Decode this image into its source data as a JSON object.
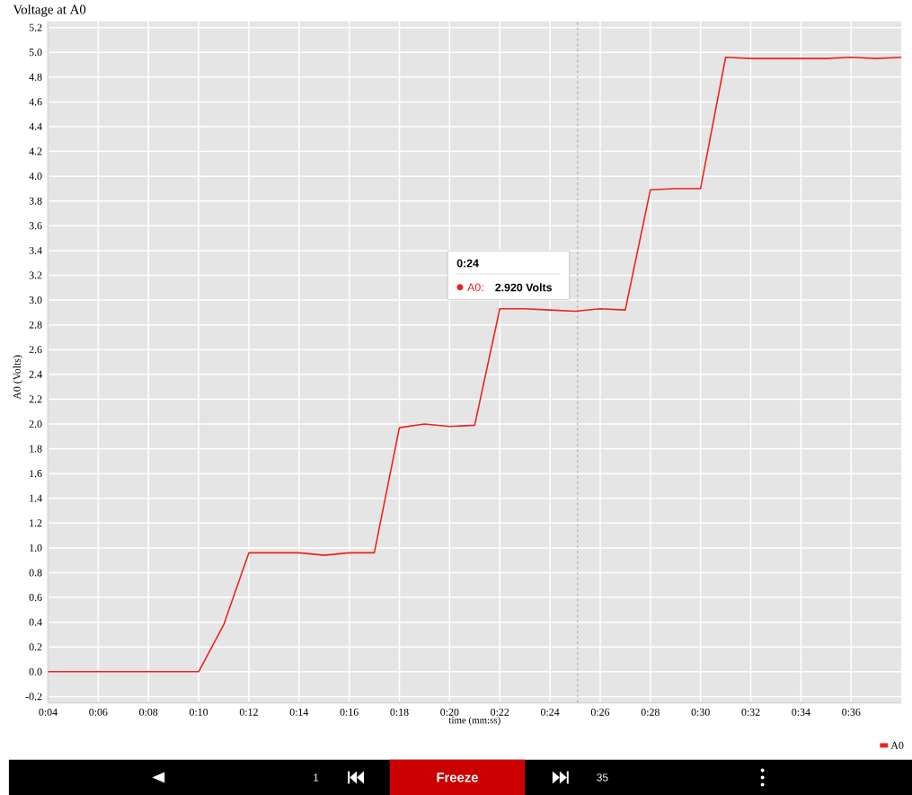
{
  "chart_data": {
    "type": "line",
    "title": "Voltage at A0",
    "xlabel": "time (mm:ss)",
    "ylabel": "A0 (Volts)",
    "x": [
      4,
      5,
      6,
      7,
      8,
      9,
      10,
      11,
      12,
      13,
      14,
      15,
      16,
      17,
      18,
      19,
      20,
      21,
      22,
      23,
      24,
      25,
      26,
      27,
      28,
      29,
      30,
      31,
      32,
      33,
      34,
      35,
      36,
      37,
      38
    ],
    "series": [
      {
        "name": "A0",
        "color": "#ee2222",
        "values": [
          0,
          0,
          0,
          0,
          0,
          0,
          0,
          0.38,
          0.96,
          0.96,
          0.96,
          0.94,
          0.96,
          0.96,
          1.97,
          2.0,
          1.98,
          1.99,
          2.93,
          2.93,
          2.92,
          2.91,
          2.93,
          2.92,
          3.89,
          3.9,
          3.9,
          4.96,
          4.95,
          4.95,
          4.95,
          4.95,
          4.96,
          4.95,
          4.96
        ]
      }
    ],
    "xlim": [
      4,
      38
    ],
    "xticks": [
      {
        "value": 4,
        "label": "0:04"
      },
      {
        "value": 6,
        "label": "0:06"
      },
      {
        "value": 8,
        "label": "0:08"
      },
      {
        "value": 10,
        "label": "0:10"
      },
      {
        "value": 12,
        "label": "0:12"
      },
      {
        "value": 14,
        "label": "0:14"
      },
      {
        "value": 16,
        "label": "0:16"
      },
      {
        "value": 18,
        "label": "0:18"
      },
      {
        "value": 20,
        "label": "0:20"
      },
      {
        "value": 22,
        "label": "0:22"
      },
      {
        "value": 24,
        "label": "0:24"
      },
      {
        "value": 26,
        "label": "0:26"
      },
      {
        "value": 28,
        "label": "0:28"
      },
      {
        "value": 30,
        "label": "0:30"
      },
      {
        "value": 32,
        "label": "0:32"
      },
      {
        "value": 34,
        "label": "0:34"
      },
      {
        "value": 36,
        "label": "0:36"
      }
    ],
    "ylim": [
      -0.25,
      5.25
    ],
    "yticks": [
      {
        "value": -0.2,
        "label": "-0.2"
      },
      {
        "value": 0,
        "label": "0.0"
      },
      {
        "value": 0.2,
        "label": "0.2"
      },
      {
        "value": 0.4,
        "label": "0.4"
      },
      {
        "value": 0.6,
        "label": "0.6"
      },
      {
        "value": 0.8,
        "label": "0.8"
      },
      {
        "value": 1,
        "label": "1.0"
      },
      {
        "value": 1.2,
        "label": "1.2"
      },
      {
        "value": 1.4,
        "label": "1.4"
      },
      {
        "value": 1.6,
        "label": "1.6"
      },
      {
        "value": 1.8,
        "label": "1.8"
      },
      {
        "value": 2,
        "label": "2.0"
      },
      {
        "value": 2.2,
        "label": "2.2"
      },
      {
        "value": 2.4,
        "label": "2.4"
      },
      {
        "value": 2.6,
        "label": "2.6"
      },
      {
        "value": 2.8,
        "label": "2.8"
      },
      {
        "value": 3,
        "label": "3.0"
      },
      {
        "value": 3.2,
        "label": "3.2"
      },
      {
        "value": 3.4,
        "label": "3.4"
      },
      {
        "value": 3.6,
        "label": "3.6"
      },
      {
        "value": 3.8,
        "label": "3.8"
      },
      {
        "value": 4,
        "label": "4.0"
      },
      {
        "value": 4.2,
        "label": "4.2"
      },
      {
        "value": 4.4,
        "label": "4.4"
      },
      {
        "value": 4.6,
        "label": "4.6"
      },
      {
        "value": 4.8,
        "label": "4.8"
      },
      {
        "value": 5,
        "label": "5.0"
      },
      {
        "value": 5.2,
        "label": "5.2"
      }
    ],
    "grid": true,
    "legend": "bottom right",
    "marker": "none",
    "line_style": "solid",
    "ref_lines": [
      {
        "axis": "x",
        "value": 25.1,
        "color": "#999999",
        "line_style": "dashed"
      }
    ],
    "annotations": [
      "0:24",
      "A0:",
      "2.920 Volts",
      "1",
      "Freeze",
      "35"
    ]
  }
}
